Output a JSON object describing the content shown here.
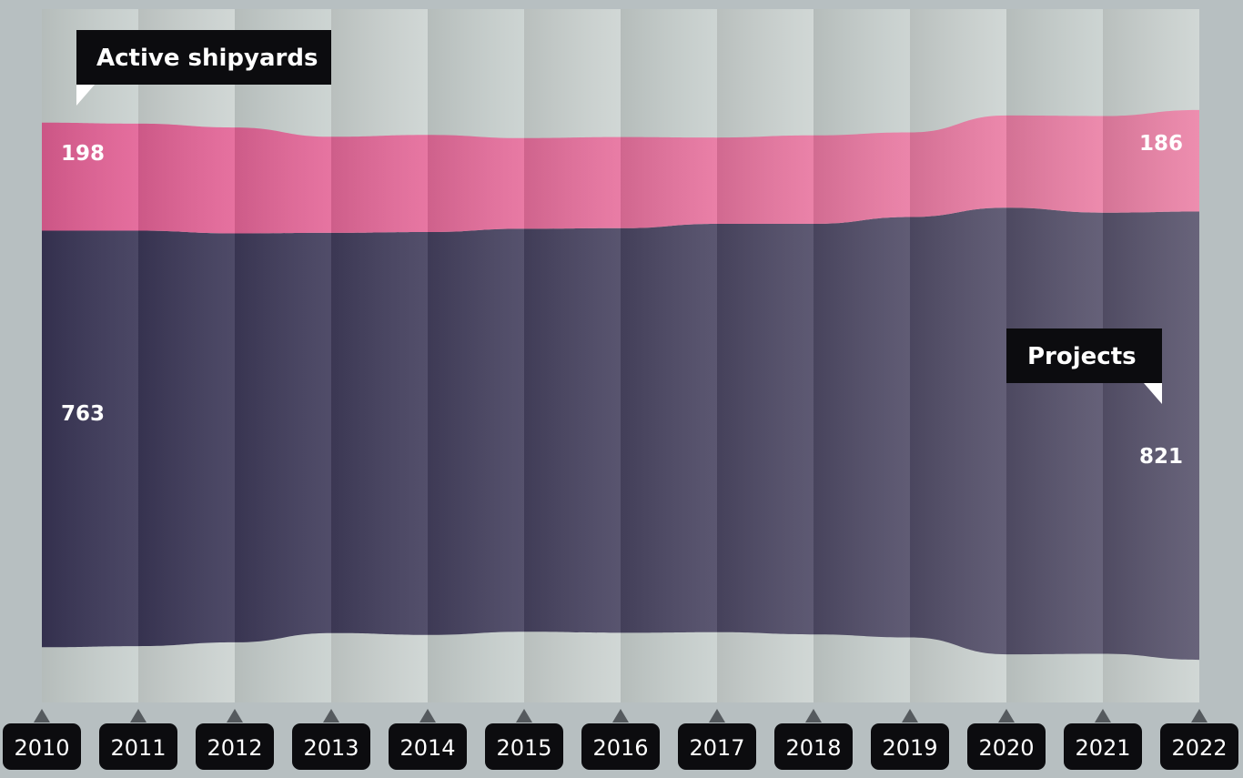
{
  "chart_data": {
    "type": "area",
    "categories": [
      "2010",
      "2011",
      "2012",
      "2013",
      "2014",
      "2015",
      "2016",
      "2017",
      "2018",
      "2019",
      "2020",
      "2021",
      "2022"
    ],
    "series": [
      {
        "name": "Projects",
        "values": [
          763,
          761,
          749,
          733,
          738,
          738,
          741,
          748,
          752,
          770,
          818,
          808,
          821
        ],
        "color": "#403b5b"
      },
      {
        "name": "Active shipyards",
        "values": [
          198,
          196,
          194,
          176,
          178,
          166,
          167,
          158,
          162,
          155,
          169,
          177,
          186
        ],
        "color": "#e56a9a"
      }
    ],
    "labels": {
      "first_shipyards": "198",
      "last_shipyards": "186",
      "first_projects": "763",
      "last_projects": "821"
    },
    "colors": {
      "background": "#b7bfc1",
      "plot_band": "#c9d1cf",
      "tag": "#0c0c0f"
    }
  }
}
